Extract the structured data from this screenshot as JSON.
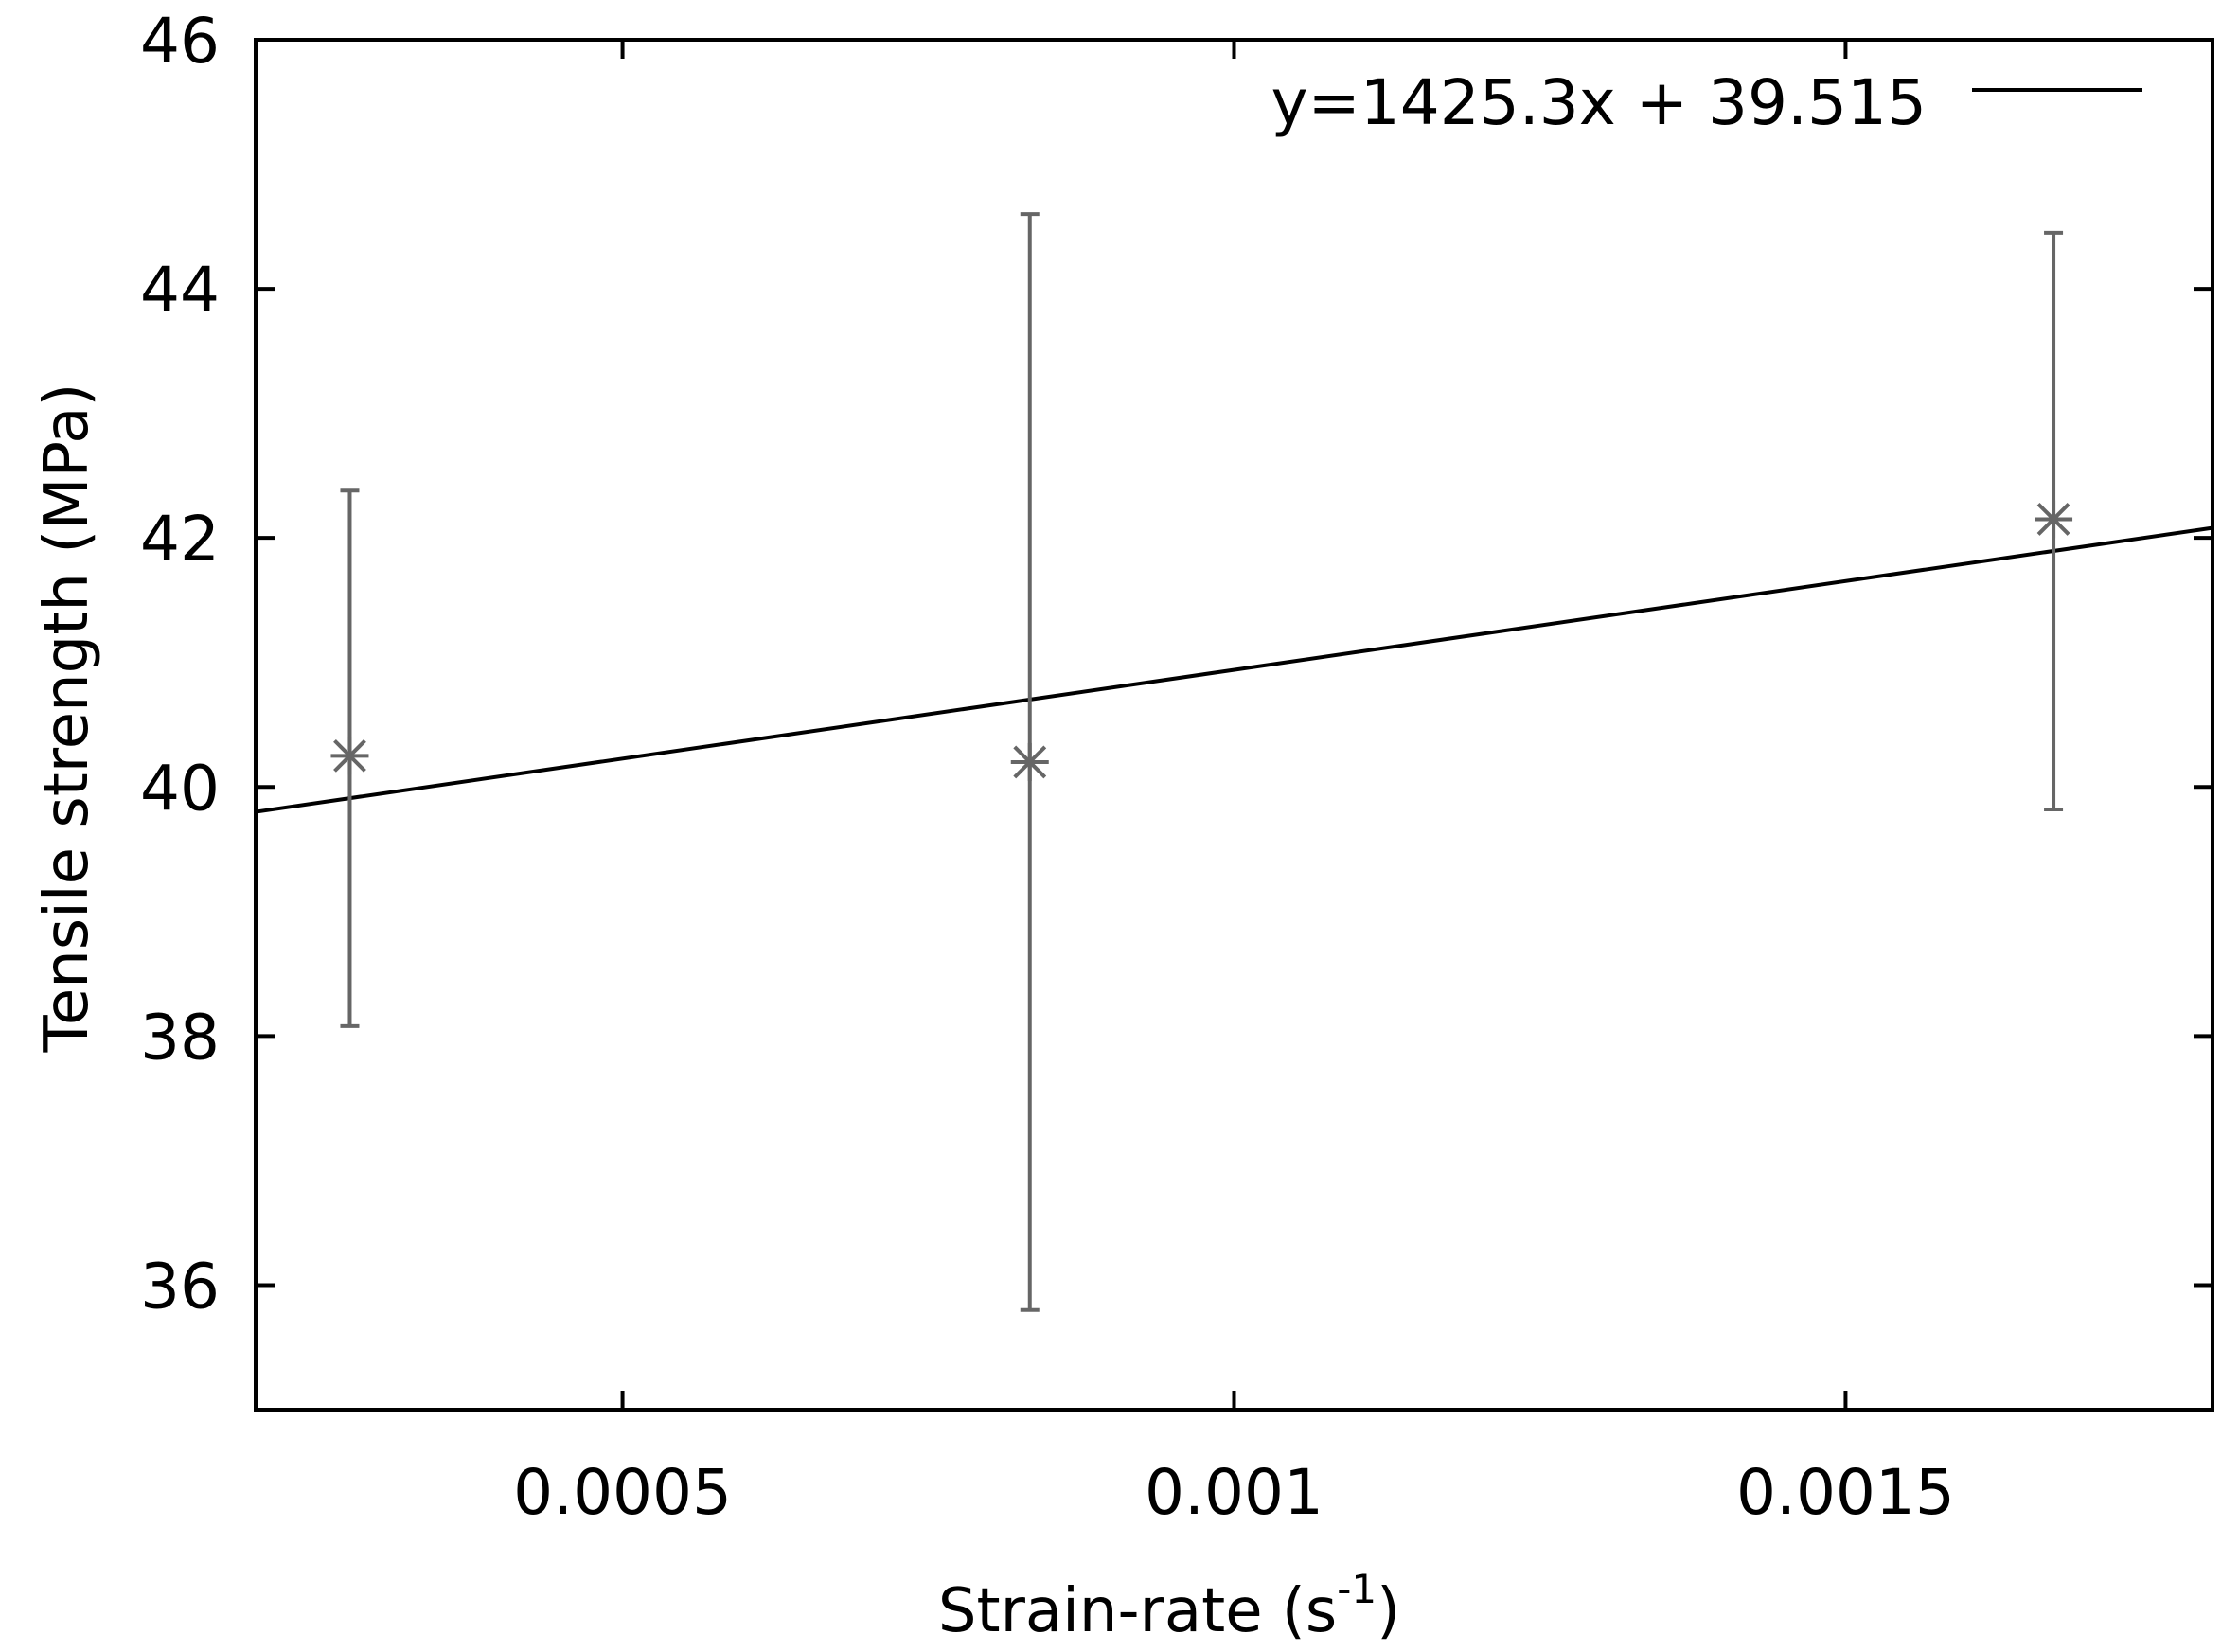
{
  "chart_data": {
    "type": "scatter",
    "xlabel": "Strain-rate (s",
    "xlabel_sup": "-1",
    "xlabel_end": ")",
    "ylabel": "Tensile strength (MPa)",
    "xlim": [
      0.0002,
      0.0018
    ],
    "ylim": [
      35,
      46
    ],
    "xticks": [
      0.0005,
      0.001,
      0.0015
    ],
    "xtick_labels": [
      "0.0005",
      "0.001",
      "0.0015"
    ],
    "yticks": [
      36,
      38,
      40,
      42,
      44,
      46
    ],
    "ytick_labels": [
      "36",
      "38",
      "40",
      "42",
      "44",
      "46"
    ],
    "grid": false,
    "legend_position": "top-right",
    "series": [
      {
        "kind": "points-with-error-bars",
        "marker": "asterisk",
        "color": "#666666",
        "points": [
          {
            "x": 0.000277,
            "y": 40.25,
            "ylow": 38.08,
            "yhigh": 42.38
          },
          {
            "x": 0.000833,
            "y": 40.2,
            "ylow": 35.8,
            "yhigh": 44.6
          },
          {
            "x": 0.00167,
            "y": 42.15,
            "ylow": 39.82,
            "yhigh": 44.45
          }
        ]
      },
      {
        "kind": "fit-line",
        "name": "y=1425.3x + 39.515",
        "slope": 1425.3,
        "intercept": 39.515,
        "color": "#000000"
      }
    ]
  }
}
